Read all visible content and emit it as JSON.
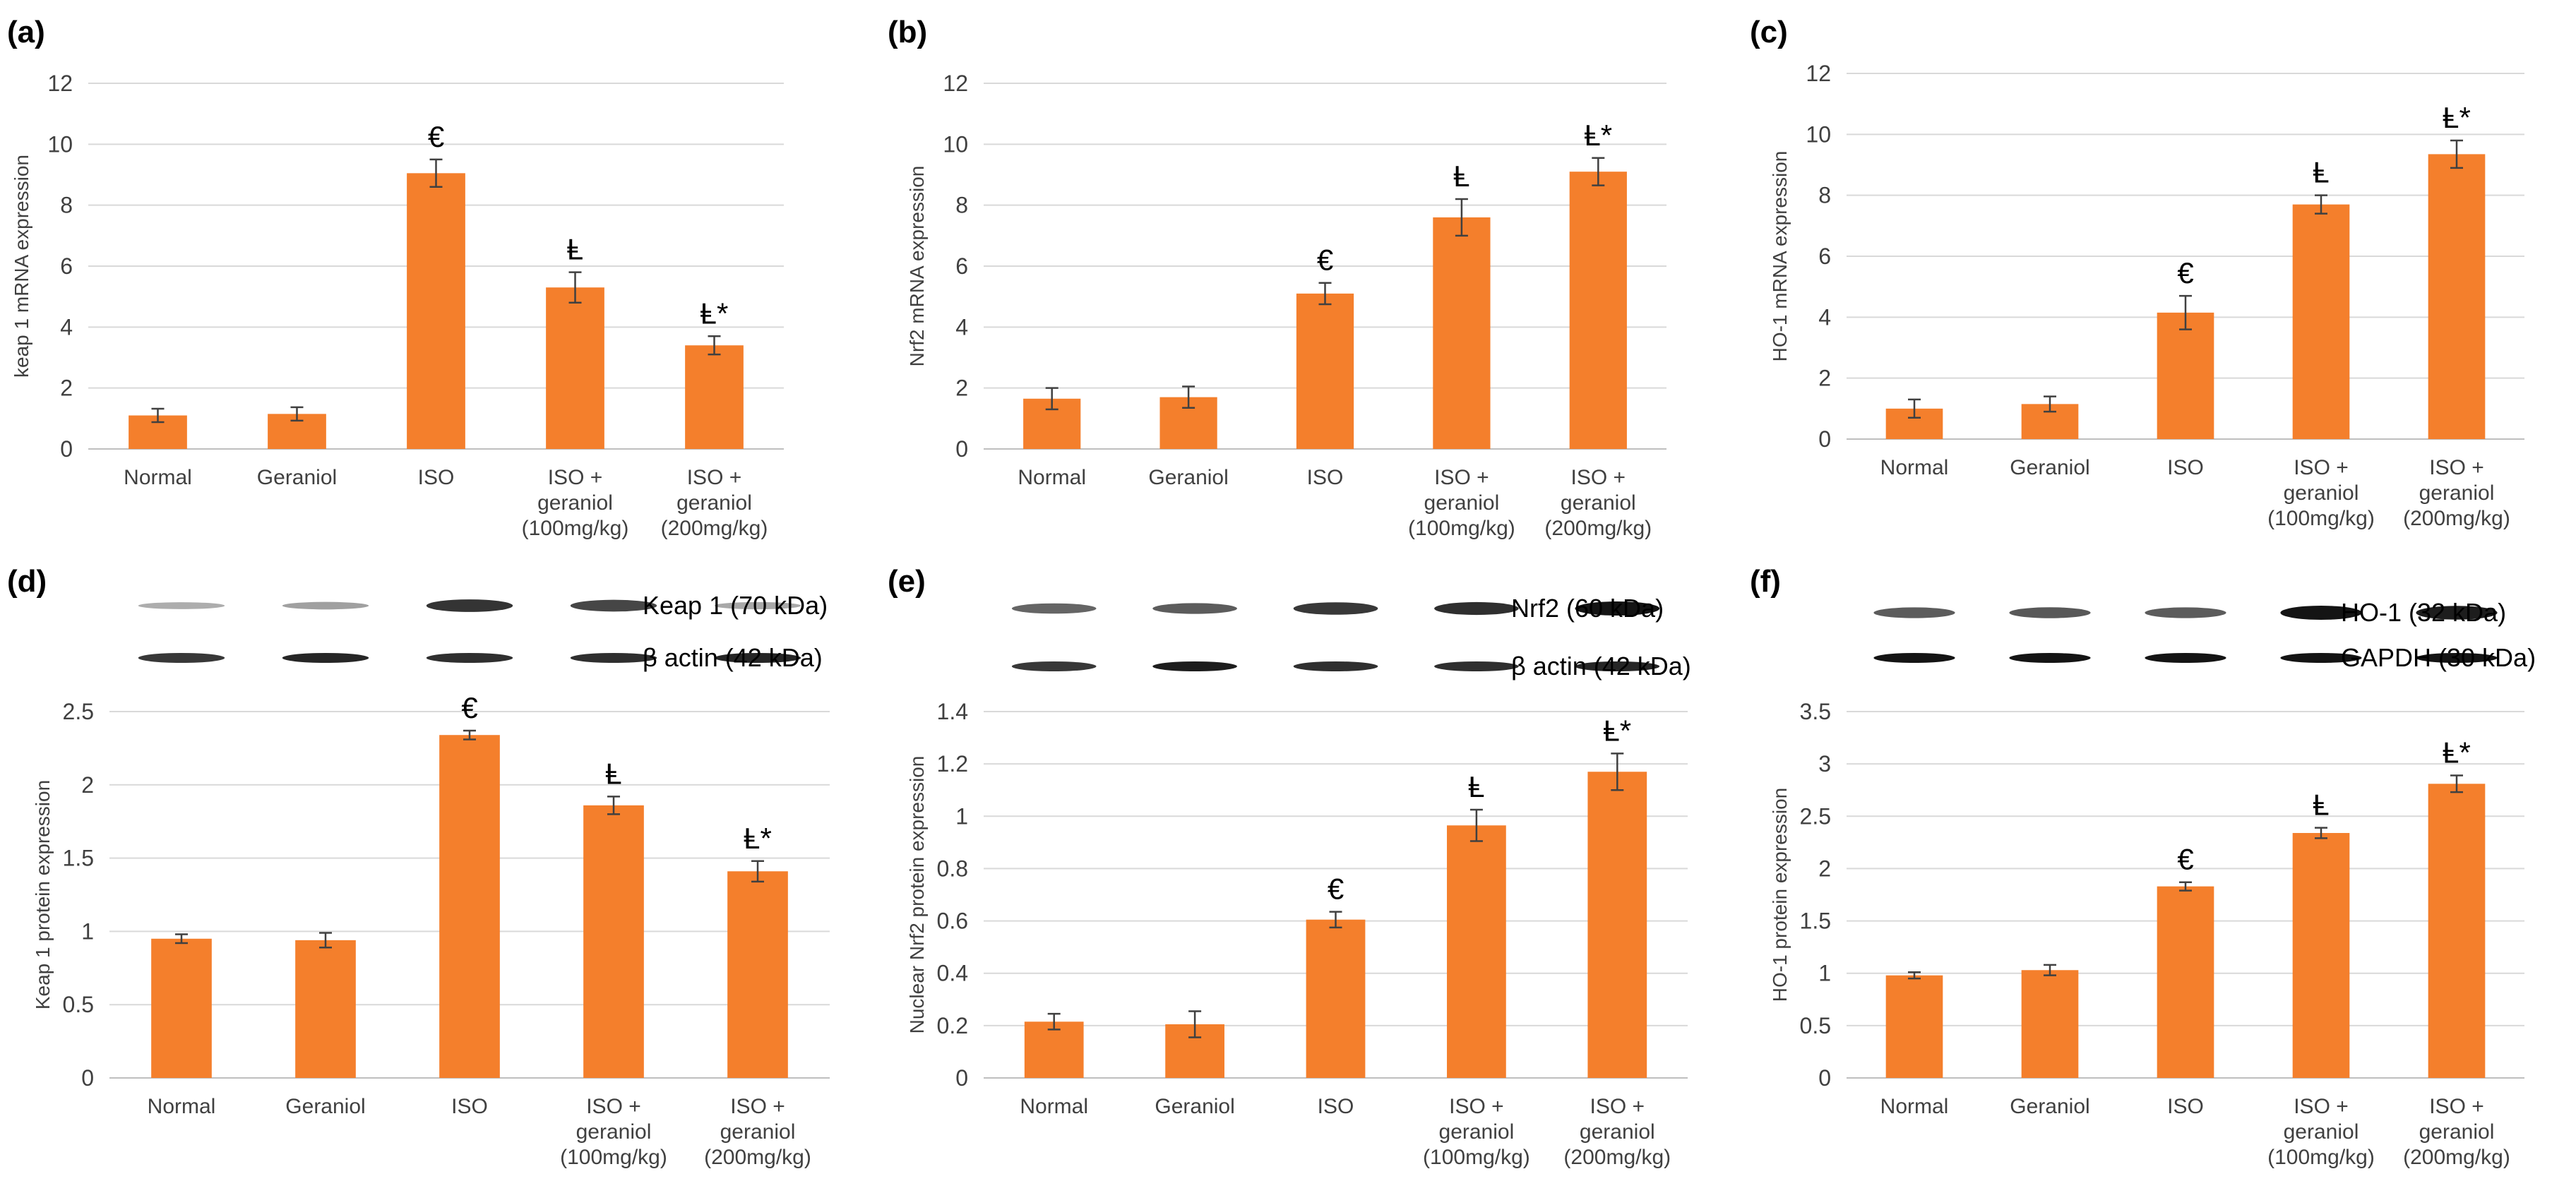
{
  "colors": {
    "bar": "#f47f2c",
    "grid": "#d9d9d9",
    "axis": "#bfbfbf",
    "text": "#404040",
    "panel_label": "#000000",
    "error": "#404040"
  },
  "chart_data": [
    {
      "panel": "(a)",
      "type": "bar",
      "categories": [
        "Normal",
        "Geraniol",
        "ISO",
        "ISO + geraniol (100mg/kg)",
        "ISO + geraniol (200mg/kg)"
      ],
      "values": [
        1.1,
        1.15,
        9.05,
        5.3,
        3.4
      ],
      "errors": [
        0.22,
        0.22,
        0.45,
        0.5,
        0.3
      ],
      "annotations": [
        "",
        "",
        "€",
        "Ⱡ",
        "Ⱡ*"
      ],
      "ylabel": "keap 1  mRNA expression",
      "ylim": [
        0,
        12
      ],
      "yticks": [
        0,
        2,
        4,
        6,
        8,
        10,
        12
      ],
      "grid": true
    },
    {
      "panel": "(b)",
      "type": "bar",
      "categories": [
        "Normal",
        "Geraniol",
        "ISO",
        "ISO + geraniol (100mg/kg)",
        "ISO + geraniol (200mg/kg)"
      ],
      "values": [
        1.65,
        1.7,
        5.1,
        7.6,
        9.1
      ],
      "errors": [
        0.35,
        0.35,
        0.35,
        0.6,
        0.45
      ],
      "annotations": [
        "",
        "",
        "€",
        "Ⱡ",
        "Ⱡ*"
      ],
      "ylabel": "Nrf2 mRNA expression",
      "ylim": [
        0,
        12
      ],
      "yticks": [
        0,
        2,
        4,
        6,
        8,
        10,
        12
      ],
      "grid": true
    },
    {
      "panel": "(c)",
      "type": "bar",
      "categories": [
        "Normal",
        "Geraniol",
        "ISO",
        "ISO + geraniol (100mg/kg)",
        "ISO + geraniol (200mg/kg)"
      ],
      "values": [
        1.0,
        1.15,
        4.15,
        7.7,
        9.35
      ],
      "errors": [
        0.3,
        0.25,
        0.55,
        0.3,
        0.45
      ],
      "annotations": [
        "",
        "",
        "€",
        "Ⱡ",
        "Ⱡ*"
      ],
      "ylabel": "HO-1  mRNA expression",
      "ylim": [
        0,
        12
      ],
      "yticks": [
        0,
        2,
        4,
        6,
        8,
        10,
        12
      ],
      "grid": true
    },
    {
      "panel": "(d)",
      "type": "bar",
      "categories": [
        "Normal",
        "Geraniol",
        "ISO",
        "ISO + geraniol (100mg/kg)",
        "ISO + geraniol (200mg/kg)"
      ],
      "values": [
        0.95,
        0.94,
        2.34,
        1.86,
        1.41
      ],
      "errors": [
        0.03,
        0.05,
        0.03,
        0.06,
        0.07
      ],
      "annotations": [
        "",
        "",
        "€",
        "Ⱡ",
        "Ⱡ*"
      ],
      "ylabel": "Keap 1  protein expression",
      "ylim": [
        0,
        2.5
      ],
      "yticks": [
        0,
        0.5,
        1,
        1.5,
        2,
        2.5
      ],
      "grid": true,
      "blot_labels": [
        "Keap 1 (70 kDa)",
        "β actin (42 kDa)"
      ]
    },
    {
      "panel": "(e)",
      "type": "bar",
      "categories": [
        "Normal",
        "Geraniol",
        "ISO",
        "ISO + geraniol (100mg/kg)",
        "ISO + geraniol (200mg/kg)"
      ],
      "values": [
        0.215,
        0.205,
        0.605,
        0.965,
        1.17
      ],
      "errors": [
        0.03,
        0.05,
        0.03,
        0.06,
        0.07
      ],
      "annotations": [
        "",
        "",
        "€",
        "Ⱡ",
        "Ⱡ*"
      ],
      "ylabel": "Nuclear Nrf2 protein expression",
      "ylim": [
        0,
        1.4
      ],
      "yticks": [
        0,
        0.2,
        0.4,
        0.6,
        0.8,
        1,
        1.2,
        1.4
      ],
      "grid": true,
      "blot_labels": [
        "Nrf2 (60 kDa)",
        "β actin (42 kDa)"
      ]
    },
    {
      "panel": "(f)",
      "type": "bar",
      "categories": [
        "Normal",
        "Geraniol",
        "ISO",
        "ISO + geraniol (100mg/kg)",
        "ISO + geraniol (200mg/kg)"
      ],
      "values": [
        0.98,
        1.03,
        1.83,
        2.34,
        2.81
      ],
      "errors": [
        0.03,
        0.05,
        0.04,
        0.05,
        0.08
      ],
      "annotations": [
        "",
        "",
        "€",
        "Ⱡ",
        "Ⱡ*"
      ],
      "ylabel": "HO-1 protein expression",
      "ylim": [
        0,
        3.5
      ],
      "yticks": [
        0,
        0.5,
        1,
        1.5,
        2,
        2.5,
        3,
        3.5
      ],
      "grid": true,
      "blot_labels": [
        "HO-1 (32 kDa)",
        "GAPDH (30 kDa)"
      ]
    }
  ]
}
